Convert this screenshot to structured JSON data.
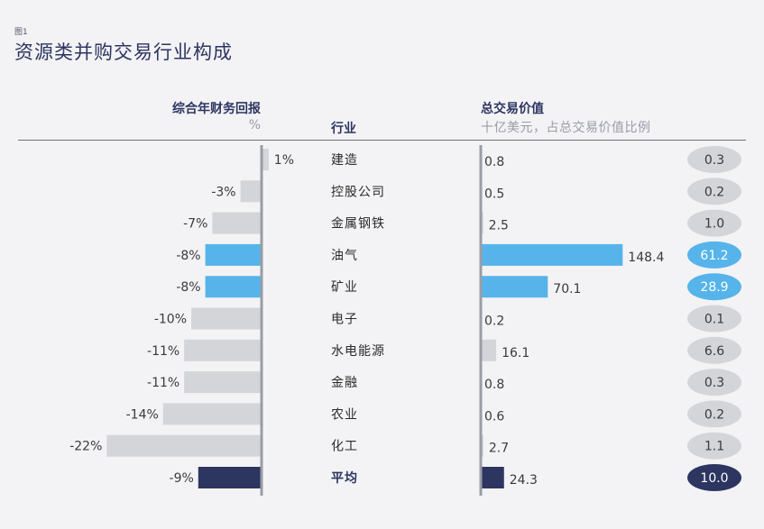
{
  "figure_tag": "图1",
  "title": "资源类并购交易行业构成",
  "headers": {
    "left_title": "综合年财务回报",
    "left_unit": "%",
    "industry": "行业",
    "right_title": "总交易价值",
    "right_unit": "十亿美元，占总交易价值比例"
  },
  "colors": {
    "default_bar": "#d4d5d8",
    "highlight_bar": "#56b4ea",
    "average_bar": "#2d3561",
    "axis": "#9a9ca6",
    "badge_default": "#d4d5d8",
    "badge_highlight": "#56b4ea",
    "badge_average": "#2d3561"
  },
  "chart_data": {
    "type": "bar",
    "categories": [
      "建造",
      "控股公司",
      "金属钢铁",
      "油气",
      "矿业",
      "电子",
      "水电能源",
      "金融",
      "农业",
      "化工",
      "平均"
    ],
    "series": [
      {
        "name": "综合年财务回报",
        "values": [
          1,
          -3,
          -7,
          -8,
          -8,
          -10,
          -11,
          -11,
          -14,
          -22,
          -9
        ],
        "labels": [
          "1%",
          "-3%",
          "-7%",
          "-8%",
          "-8%",
          "-10%",
          "-11%",
          "-11%",
          "-14%",
          "-22%",
          "-9%"
        ]
      },
      {
        "name": "总交易价值",
        "values": [
          0.8,
          0.5,
          2.5,
          148.4,
          70.1,
          0.2,
          16.1,
          0.8,
          0.6,
          2.7,
          24.3
        ],
        "labels": [
          "0.8",
          "0.5",
          "2.5",
          "148.4",
          "70.1",
          "0.2",
          "16.1",
          "0.8",
          "0.6",
          "2.7",
          "24.3"
        ]
      },
      {
        "name": "占总交易价值比例",
        "values": [
          0.3,
          0.2,
          1.0,
          61.2,
          28.9,
          0.1,
          6.6,
          0.3,
          0.2,
          1.1,
          10.0
        ],
        "labels": [
          "0.3",
          "0.2",
          "1.0",
          "61.2",
          "28.9",
          "0.1",
          "6.6",
          "0.3",
          "0.2",
          "1.1",
          "10.0"
        ]
      }
    ],
    "highlight": [
      "default",
      "default",
      "default",
      "highlight",
      "highlight",
      "default",
      "default",
      "default",
      "default",
      "default",
      "average"
    ]
  }
}
